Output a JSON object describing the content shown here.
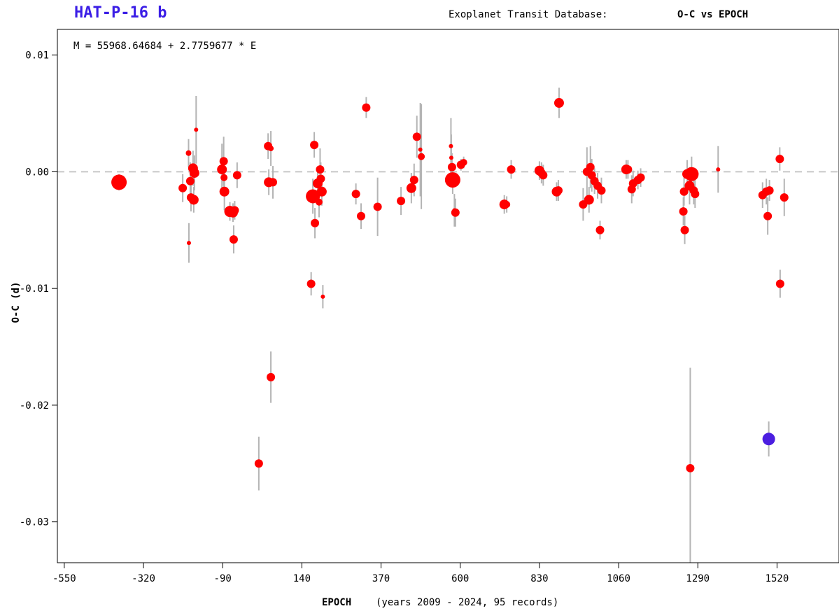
{
  "header": {
    "planet_name": "HAT-P-16 b",
    "database_label": "Exoplanet Transit Database:",
    "plot_type": "O-C vs EPOCH"
  },
  "colors": {
    "planet_name": "#3b1ee6",
    "points": "#ff0000",
    "highlight_point": "#4b1ee0",
    "error_bars": "#b4b4b4",
    "zero_line": "#c8c8c8",
    "axes": "#000000"
  },
  "chart_data": {
    "type": "scatter",
    "title": "O-C vs EPOCH",
    "annotation": "M = 55968.64684 + 2.7759677 * E",
    "xlabel": "EPOCH",
    "xlabel_note": "(years 2009 - 2024, 95 records)",
    "ylabel": "O-C (d)",
    "xlim": [
      -570,
      1700
    ],
    "ylim": [
      -0.0335,
      0.0122
    ],
    "xticks": [
      -550,
      -320,
      -90,
      140,
      370,
      600,
      830,
      1060,
      1290,
      1520
    ],
    "yticks": [
      0.01,
      0.0,
      -0.01,
      -0.02,
      -0.03
    ],
    "ytick_labels": [
      "0.01",
      "0.00",
      "-0.01",
      "-0.02",
      "-0.03"
    ],
    "reference_line_y": 0,
    "grid": false,
    "points": [
      {
        "x": -391,
        "y": -0.0009,
        "err": 0.0007,
        "size": 11
      },
      {
        "x": -206,
        "y": -0.0014,
        "err": 0.0012,
        "size": 6
      },
      {
        "x": -189,
        "y": 0.0016,
        "err": 0.0012,
        "size": 4
      },
      {
        "x": -188,
        "y": -0.0061,
        "err": 0.0017,
        "size": 3
      },
      {
        "x": -184,
        "y": -0.0008,
        "err": 0.0016,
        "size": 6
      },
      {
        "x": -182,
        "y": -0.0022,
        "err": 0.0012,
        "size": 6
      },
      {
        "x": -176,
        "y": 0.0003,
        "err": 0.0015,
        "size": 7
      },
      {
        "x": -174,
        "y": -0.0024,
        "err": 0.0011,
        "size": 7
      },
      {
        "x": -172,
        "y": -0.0001,
        "err": 0.0015,
        "size": 7
      },
      {
        "x": -167,
        "y": 0.0036,
        "err": 0.0029,
        "size": 3
      },
      {
        "x": -92,
        "y": 0.0002,
        "err": 0.0022,
        "size": 7
      },
      {
        "x": -87,
        "y": 0.0009,
        "err": 0.0021,
        "size": 6
      },
      {
        "x": -85,
        "y": -0.0017,
        "err": 0.0016,
        "size": 7
      },
      {
        "x": -86,
        "y": -0.0005,
        "err": 0.0012,
        "size": 5
      },
      {
        "x": -69,
        "y": -0.0034,
        "err": 0.0008,
        "size": 8
      },
      {
        "x": -60,
        "y": -0.0035,
        "err": 0.0008,
        "size": 7
      },
      {
        "x": -55,
        "y": -0.0033,
        "err": 0.0008,
        "size": 6
      },
      {
        "x": -58,
        "y": -0.0058,
        "err": 0.0012,
        "size": 6
      },
      {
        "x": -48,
        "y": -0.0003,
        "err": 0.0011,
        "size": 6
      },
      {
        "x": 15,
        "y": -0.025,
        "err": 0.0023,
        "size": 6
      },
      {
        "x": 42,
        "y": 0.0022,
        "err": 0.0011,
        "size": 6
      },
      {
        "x": 44,
        "y": -0.0009,
        "err": 0.0011,
        "size": 7
      },
      {
        "x": 50,
        "y": 0.002,
        "err": 0.0015,
        "size": 4
      },
      {
        "x": 50,
        "y": -0.0176,
        "err": 0.0022,
        "size": 6
      },
      {
        "x": 56,
        "y": -0.0009,
        "err": 0.0014,
        "size": 6
      },
      {
        "x": 167,
        "y": -0.0096,
        "err": 0.001,
        "size": 6
      },
      {
        "x": 172,
        "y": -0.0021,
        "err": 0.0015,
        "size": 10
      },
      {
        "x": 176,
        "y": 0.0023,
        "err": 0.0011,
        "size": 6
      },
      {
        "x": 178,
        "y": -0.0044,
        "err": 0.0013,
        "size": 6
      },
      {
        "x": 186,
        "y": -0.001,
        "err": 0.0013,
        "size": 7
      },
      {
        "x": 190,
        "y": -0.0026,
        "err": 0.0013,
        "size": 5
      },
      {
        "x": 193,
        "y": 0.0002,
        "err": 0.0018,
        "size": 6
      },
      {
        "x": 195,
        "y": -0.0006,
        "err": 0.0014,
        "size": 6
      },
      {
        "x": 198,
        "y": -0.0017,
        "err": 0.0012,
        "size": 7
      },
      {
        "x": 201,
        "y": -0.0107,
        "err": 0.001,
        "size": 3
      },
      {
        "x": 297,
        "y": -0.0019,
        "err": 0.0009,
        "size": 6
      },
      {
        "x": 312,
        "y": -0.0038,
        "err": 0.0011,
        "size": 6
      },
      {
        "x": 327,
        "y": 0.0055,
        "err": 0.0009,
        "size": 6
      },
      {
        "x": 360,
        "y": -0.003,
        "err": 0.0025,
        "size": 6
      },
      {
        "x": 428,
        "y": -0.0025,
        "err": 0.0012,
        "size": 6
      },
      {
        "x": 458,
        "y": -0.0014,
        "err": 0.0013,
        "size": 7
      },
      {
        "x": 466,
        "y": -0.0007,
        "err": 0.0014,
        "size": 6
      },
      {
        "x": 474,
        "y": 0.003,
        "err": 0.0018,
        "size": 6
      },
      {
        "x": 484,
        "y": 0.0019,
        "err": 0.004,
        "size": 3
      },
      {
        "x": 487,
        "y": 0.0013,
        "err": 0.0045,
        "size": 5
      },
      {
        "x": 573,
        "y": 0.0022,
        "err": 0.0024,
        "size": 3
      },
      {
        "x": 574,
        "y": 0.0012,
        "err": 0.002,
        "size": 3
      },
      {
        "x": 576,
        "y": 0.0004,
        "err": 0.0012,
        "size": 6
      },
      {
        "x": 578,
        "y": -0.0007,
        "err": 0.0012,
        "size": 11
      },
      {
        "x": 583,
        "y": -0.0033,
        "err": 0.0014,
        "size": 3
      },
      {
        "x": 586,
        "y": -0.0035,
        "err": 0.0012,
        "size": 6
      },
      {
        "x": 602,
        "y": 0.0006,
        "err": 0.0005,
        "size": 6
      },
      {
        "x": 610,
        "y": 0.0008,
        "err": 0.0005,
        "size": 5
      },
      {
        "x": 728,
        "y": -0.0028,
        "err": 0.0008,
        "size": 7
      },
      {
        "x": 735,
        "y": -0.0028,
        "err": 0.0007,
        "size": 5
      },
      {
        "x": 748,
        "y": 0.0002,
        "err": 0.0008,
        "size": 6
      },
      {
        "x": 830,
        "y": 0.0001,
        "err": 0.0008,
        "size": 7
      },
      {
        "x": 836,
        "y": -0.0001,
        "err": 0.0009,
        "size": 6
      },
      {
        "x": 841,
        "y": -0.0003,
        "err": 0.0009,
        "size": 6
      },
      {
        "x": 880,
        "y": -0.0017,
        "err": 0.0008,
        "size": 7
      },
      {
        "x": 885,
        "y": -0.0016,
        "err": 0.0009,
        "size": 6
      },
      {
        "x": 887,
        "y": 0.0059,
        "err": 0.0013,
        "size": 7
      },
      {
        "x": 957,
        "y": -0.0028,
        "err": 0.0014,
        "size": 6
      },
      {
        "x": 968,
        "y": 0.0,
        "err": 0.0021,
        "size": 6
      },
      {
        "x": 974,
        "y": -0.0024,
        "err": 0.0011,
        "size": 7
      },
      {
        "x": 978,
        "y": 0.0004,
        "err": 0.0018,
        "size": 6
      },
      {
        "x": 982,
        "y": -0.0003,
        "err": 0.0014,
        "size": 6
      },
      {
        "x": 990,
        "y": -0.0008,
        "err": 0.0011,
        "size": 6
      },
      {
        "x": 999,
        "y": -0.0012,
        "err": 0.0011,
        "size": 6
      },
      {
        "x": 1006,
        "y": -0.005,
        "err": 0.0008,
        "size": 6
      },
      {
        "x": 1010,
        "y": -0.0016,
        "err": 0.0011,
        "size": 6
      },
      {
        "x": 1082,
        "y": 0.0002,
        "err": 0.0008,
        "size": 7
      },
      {
        "x": 1087,
        "y": 0.0002,
        "err": 0.0008,
        "size": 6
      },
      {
        "x": 1098,
        "y": -0.0015,
        "err": 0.0012,
        "size": 6
      },
      {
        "x": 1102,
        "y": -0.001,
        "err": 0.0011,
        "size": 6
      },
      {
        "x": 1116,
        "y": -0.0007,
        "err": 0.0008,
        "size": 6
      },
      {
        "x": 1124,
        "y": -0.0005,
        "err": 0.0008,
        "size": 6
      },
      {
        "x": 1248,
        "y": -0.0034,
        "err": 0.0012,
        "size": 6
      },
      {
        "x": 1250,
        "y": -0.0017,
        "err": 0.0012,
        "size": 6
      },
      {
        "x": 1252,
        "y": -0.005,
        "err": 0.0012,
        "size": 6
      },
      {
        "x": 1259,
        "y": -0.0002,
        "err": 0.0012,
        "size": 7
      },
      {
        "x": 1266,
        "y": -0.0012,
        "err": 0.0016,
        "size": 7
      },
      {
        "x": 1268,
        "y": -0.0254,
        "err": 0.0086,
        "size": 6
      },
      {
        "x": 1272,
        "y": -0.0002,
        "err": 0.0015,
        "size": 10
      },
      {
        "x": 1278,
        "y": -0.0016,
        "err": 0.0012,
        "size": 6
      },
      {
        "x": 1282,
        "y": -0.0019,
        "err": 0.0012,
        "size": 6
      },
      {
        "x": 1349,
        "y": 0.0002,
        "err": 0.002,
        "size": 3
      },
      {
        "x": 1478,
        "y": -0.002,
        "err": 0.0011,
        "size": 6
      },
      {
        "x": 1489,
        "y": -0.0017,
        "err": 0.0011,
        "size": 6
      },
      {
        "x": 1493,
        "y": -0.0038,
        "err": 0.0016,
        "size": 6
      },
      {
        "x": 1498,
        "y": -0.0016,
        "err": 0.0009,
        "size": 6
      },
      {
        "x": 1528,
        "y": 0.0011,
        "err": 0.001,
        "size": 6
      },
      {
        "x": 1529,
        "y": -0.0096,
        "err": 0.0012,
        "size": 6
      },
      {
        "x": 1541,
        "y": -0.0022,
        "err": 0.0016,
        "size": 6
      }
    ],
    "highlighted_points": [
      {
        "x": 1496,
        "y": -0.0229,
        "err": 0.0015,
        "size": 9
      }
    ]
  }
}
